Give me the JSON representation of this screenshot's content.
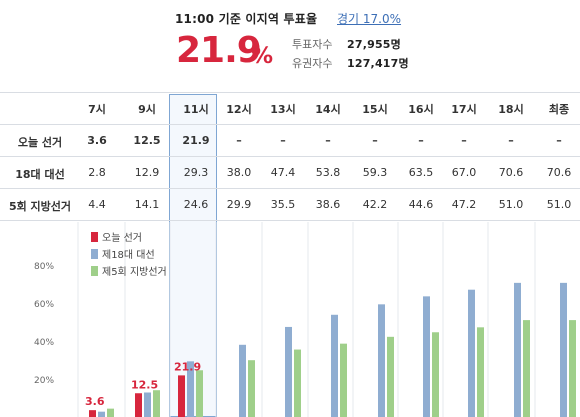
{
  "header": {
    "title": "11:00 기준 이지역 투표율",
    "region_link": "경기 17.0%",
    "turnout_rate": "21.9",
    "turnout_unit": "%",
    "voters_label": "투표자수",
    "voters_value": "27,955명",
    "eligible_label": "유권자수",
    "eligible_value": "127,417명"
  },
  "table": {
    "columns": [
      "7시",
      "9시",
      "11시",
      "12시",
      "13시",
      "14시",
      "15시",
      "16시",
      "17시",
      "18시",
      "최종"
    ],
    "rows": [
      {
        "label": "오늘 선거",
        "values": [
          "3.6",
          "12.5",
          "21.9",
          "–",
          "–",
          "–",
          "–",
          "–",
          "–",
          "–",
          "–"
        ]
      },
      {
        "label": "18대 대선",
        "values": [
          "2.8",
          "12.9",
          "29.3",
          "38.0",
          "47.4",
          "53.8",
          "59.3",
          "63.5",
          "67.0",
          "70.6",
          "70.6"
        ]
      },
      {
        "label": "5회 지방선거",
        "values": [
          "4.4",
          "14.1",
          "24.6",
          "29.9",
          "35.5",
          "38.6",
          "42.2",
          "44.6",
          "47.2",
          "51.0",
          "51.0"
        ]
      }
    ]
  },
  "chart_data": {
    "type": "bar",
    "categories": [
      "7시",
      "9시",
      "11시",
      "12시",
      "13시",
      "14시",
      "15시",
      "16시",
      "17시",
      "18시",
      "최종"
    ],
    "series": [
      {
        "name": "오늘 선거",
        "color": "#d7263d",
        "values": [
          3.6,
          12.5,
          21.9,
          null,
          null,
          null,
          null,
          null,
          null,
          null,
          null
        ]
      },
      {
        "name": "제18대 대선",
        "color": "#8fadd1",
        "values": [
          2.8,
          12.9,
          29.3,
          38.0,
          47.4,
          53.8,
          59.3,
          63.5,
          67.0,
          70.6,
          70.6
        ]
      },
      {
        "name": "제5회 지방선거",
        "color": "#9fcf8a",
        "values": [
          4.4,
          14.1,
          24.6,
          29.9,
          35.5,
          38.6,
          42.2,
          44.6,
          47.2,
          51.0,
          51.0
        ]
      }
    ],
    "data_labels": [
      "3.6",
      "12.5",
      "21.9"
    ],
    "ytick_labels": [
      "20%",
      "40%",
      "60%",
      "80%"
    ],
    "yticks": [
      20,
      40,
      60,
      80
    ],
    "ylim": [
      0,
      100
    ],
    "legend_position": "top-left",
    "grid": "vertical"
  },
  "colors": {
    "accent_red": "#d7263d",
    "link_blue": "#3d6fb6",
    "highlight_border": "#7fa6d3"
  }
}
